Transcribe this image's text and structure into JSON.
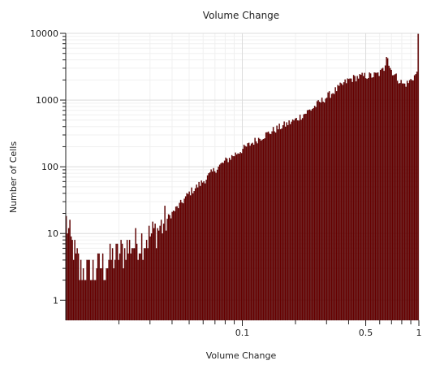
{
  "chart_data": {
    "type": "bar",
    "title": "Volume Change",
    "xlabel": "Volume Change",
    "ylabel": "Number of Cells",
    "x_scale": "log",
    "y_scale": "log",
    "xlim": [
      0.01,
      1
    ],
    "ylim": [
      0.5,
      10000
    ],
    "x_ticks": [
      {
        "value": 0.1,
        "label": "0.1"
      },
      {
        "value": 0.5,
        "label": "0.5"
      },
      {
        "value": 1,
        "label": "1"
      }
    ],
    "y_ticks": [
      {
        "value": 1,
        "label": "1"
      },
      {
        "value": 10,
        "label": "10"
      },
      {
        "value": 100,
        "label": "100"
      },
      {
        "value": 1000,
        "label": "1000"
      },
      {
        "value": 10000,
        "label": "10000"
      }
    ],
    "grid": true,
    "bar_color": "#6b0000",
    "bar_edge_color": "#3a0000",
    "profile": [
      [
        0.01,
        20
      ],
      [
        0.0103,
        12
      ],
      [
        0.0106,
        8
      ],
      [
        0.011,
        6
      ],
      [
        0.0115,
        4
      ],
      [
        0.012,
        3
      ],
      [
        0.013,
        2.5
      ],
      [
        0.014,
        2.5
      ],
      [
        0.015,
        3
      ],
      [
        0.016,
        3.5
      ],
      [
        0.018,
        4
      ],
      [
        0.02,
        5
      ],
      [
        0.022,
        6
      ],
      [
        0.025,
        7
      ],
      [
        0.03,
        9
      ],
      [
        0.035,
        13
      ],
      [
        0.04,
        20
      ],
      [
        0.045,
        28
      ],
      [
        0.05,
        40
      ],
      [
        0.06,
        60
      ],
      [
        0.07,
        90
      ],
      [
        0.08,
        120
      ],
      [
        0.09,
        150
      ],
      [
        0.1,
        180
      ],
      [
        0.12,
        250
      ],
      [
        0.15,
        350
      ],
      [
        0.2,
        500
      ],
      [
        0.25,
        750
      ],
      [
        0.3,
        1100
      ],
      [
        0.35,
        1500
      ],
      [
        0.4,
        2000
      ],
      [
        0.45,
        2200
      ],
      [
        0.5,
        2300
      ],
      [
        0.55,
        2300
      ],
      [
        0.6,
        2500
      ],
      [
        0.64,
        3000
      ],
      [
        0.66,
        5500
      ],
      [
        0.68,
        3200
      ],
      [
        0.72,
        2500
      ],
      [
        0.77,
        2000
      ],
      [
        0.82,
        1700
      ],
      [
        0.87,
        1800
      ],
      [
        0.92,
        2100
      ],
      [
        0.96,
        2400
      ],
      [
        0.985,
        2500
      ],
      [
        0.99,
        10000
      ],
      [
        1.0,
        10000
      ]
    ]
  }
}
